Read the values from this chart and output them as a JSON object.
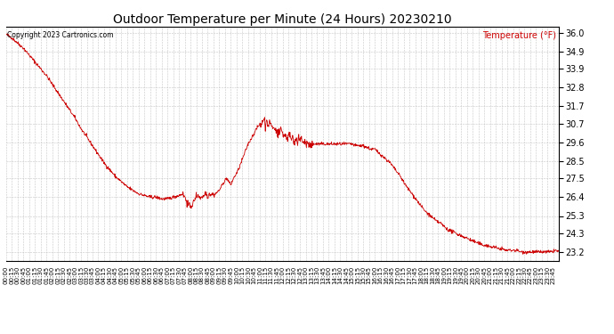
{
  "title": "Outdoor Temperature per Minute (24 Hours) 20230210",
  "copyright_text": "Copyright 2023 Cartronics.com",
  "legend_label": "Temperature (°F)",
  "line_color": "#cc0000",
  "background_color": "#ffffff",
  "plot_bg_color": "#ffffff",
  "grid_color": "#c0c0c0",
  "yticks": [
    23.2,
    24.3,
    25.3,
    26.4,
    27.5,
    28.5,
    29.6,
    30.7,
    31.7,
    32.8,
    33.9,
    34.9,
    36.0
  ],
  "ylim": [
    22.7,
    36.35
  ],
  "control_points": [
    [
      0,
      35.9
    ],
    [
      15,
      35.7
    ],
    [
      30,
      35.4
    ],
    [
      45,
      35.1
    ],
    [
      60,
      34.7
    ],
    [
      75,
      34.3
    ],
    [
      90,
      33.9
    ],
    [
      105,
      33.5
    ],
    [
      120,
      33.0
    ],
    [
      135,
      32.5
    ],
    [
      150,
      32.0
    ],
    [
      165,
      31.5
    ],
    [
      180,
      31.0
    ],
    [
      195,
      30.4
    ],
    [
      210,
      29.9
    ],
    [
      225,
      29.4
    ],
    [
      240,
      28.9
    ],
    [
      255,
      28.4
    ],
    [
      270,
      28.0
    ],
    [
      285,
      27.6
    ],
    [
      300,
      27.3
    ],
    [
      315,
      27.0
    ],
    [
      330,
      26.8
    ],
    [
      345,
      26.6
    ],
    [
      360,
      26.5
    ],
    [
      375,
      26.4
    ],
    [
      390,
      26.4
    ],
    [
      405,
      26.3
    ],
    [
      420,
      26.3
    ],
    [
      435,
      26.4
    ],
    [
      450,
      26.5
    ],
    [
      460,
      26.6
    ],
    [
      465,
      26.4
    ],
    [
      470,
      26.2
    ],
    [
      475,
      26.0
    ],
    [
      480,
      25.8
    ],
    [
      485,
      26.0
    ],
    [
      490,
      26.2
    ],
    [
      495,
      26.4
    ],
    [
      500,
      26.5
    ],
    [
      505,
      26.3
    ],
    [
      510,
      26.4
    ],
    [
      515,
      26.5
    ],
    [
      520,
      26.6
    ],
    [
      525,
      26.4
    ],
    [
      530,
      26.5
    ],
    [
      535,
      26.6
    ],
    [
      540,
      26.5
    ],
    [
      545,
      26.6
    ],
    [
      550,
      26.7
    ],
    [
      555,
      26.8
    ],
    [
      560,
      27.0
    ],
    [
      565,
      27.2
    ],
    [
      570,
      27.4
    ],
    [
      575,
      27.5
    ],
    [
      580,
      27.3
    ],
    [
      585,
      27.1
    ],
    [
      590,
      27.4
    ],
    [
      595,
      27.6
    ],
    [
      600,
      27.8
    ],
    [
      605,
      28.0
    ],
    [
      610,
      28.3
    ],
    [
      615,
      28.6
    ],
    [
      620,
      28.9
    ],
    [
      625,
      29.2
    ],
    [
      630,
      29.5
    ],
    [
      635,
      29.7
    ],
    [
      640,
      29.9
    ],
    [
      645,
      30.1
    ],
    [
      650,
      30.3
    ],
    [
      655,
      30.5
    ],
    [
      660,
      30.6
    ],
    [
      665,
      30.7
    ],
    [
      670,
      30.8
    ],
    [
      672,
      30.9
    ],
    [
      675,
      30.5
    ],
    [
      678,
      30.7
    ],
    [
      680,
      30.8
    ],
    [
      683,
      30.6
    ],
    [
      685,
      30.7
    ],
    [
      688,
      30.8
    ],
    [
      690,
      30.5
    ],
    [
      692,
      30.6
    ],
    [
      695,
      30.4
    ],
    [
      698,
      30.5
    ],
    [
      700,
      30.3
    ],
    [
      705,
      30.2
    ],
    [
      710,
      30.1
    ],
    [
      715,
      30.2
    ],
    [
      720,
      30.1
    ],
    [
      725,
      30.0
    ],
    [
      730,
      29.9
    ],
    [
      735,
      30.0
    ],
    [
      740,
      29.9
    ],
    [
      745,
      29.8
    ],
    [
      750,
      29.7
    ],
    [
      755,
      29.8
    ],
    [
      760,
      29.7
    ],
    [
      765,
      29.8
    ],
    [
      770,
      29.7
    ],
    [
      775,
      29.6
    ],
    [
      780,
      29.6
    ],
    [
      785,
      29.5
    ],
    [
      790,
      29.5
    ],
    [
      800,
      29.5
    ],
    [
      810,
      29.5
    ],
    [
      820,
      29.5
    ],
    [
      830,
      29.5
    ],
    [
      840,
      29.5
    ],
    [
      850,
      29.5
    ],
    [
      860,
      29.5
    ],
    [
      870,
      29.5
    ],
    [
      880,
      29.5
    ],
    [
      890,
      29.5
    ],
    [
      900,
      29.5
    ],
    [
      910,
      29.4
    ],
    [
      920,
      29.4
    ],
    [
      930,
      29.4
    ],
    [
      940,
      29.3
    ],
    [
      950,
      29.2
    ],
    [
      960,
      29.2
    ],
    [
      970,
      29.0
    ],
    [
      980,
      28.8
    ],
    [
      990,
      28.6
    ],
    [
      1000,
      28.4
    ],
    [
      1010,
      28.1
    ],
    [
      1020,
      27.8
    ],
    [
      1030,
      27.5
    ],
    [
      1040,
      27.1
    ],
    [
      1050,
      26.8
    ],
    [
      1060,
      26.5
    ],
    [
      1070,
      26.2
    ],
    [
      1080,
      25.9
    ],
    [
      1090,
      25.6
    ],
    [
      1100,
      25.4
    ],
    [
      1110,
      25.2
    ],
    [
      1120,
      25.0
    ],
    [
      1130,
      24.9
    ],
    [
      1140,
      24.7
    ],
    [
      1150,
      24.5
    ],
    [
      1160,
      24.4
    ],
    [
      1170,
      24.3
    ],
    [
      1180,
      24.2
    ],
    [
      1190,
      24.1
    ],
    [
      1200,
      24.0
    ],
    [
      1210,
      23.9
    ],
    [
      1220,
      23.8
    ],
    [
      1230,
      23.7
    ],
    [
      1240,
      23.6
    ],
    [
      1250,
      23.6
    ],
    [
      1260,
      23.5
    ],
    [
      1270,
      23.5
    ],
    [
      1280,
      23.4
    ],
    [
      1290,
      23.4
    ],
    [
      1300,
      23.3
    ],
    [
      1310,
      23.3
    ],
    [
      1320,
      23.3
    ],
    [
      1330,
      23.3
    ],
    [
      1340,
      23.2
    ],
    [
      1350,
      23.2
    ],
    [
      1360,
      23.2
    ],
    [
      1370,
      23.2
    ],
    [
      1380,
      23.2
    ],
    [
      1390,
      23.2
    ],
    [
      1400,
      23.2
    ],
    [
      1410,
      23.2
    ],
    [
      1420,
      23.2
    ],
    [
      1430,
      23.3
    ],
    [
      1439,
      23.2
    ]
  ]
}
